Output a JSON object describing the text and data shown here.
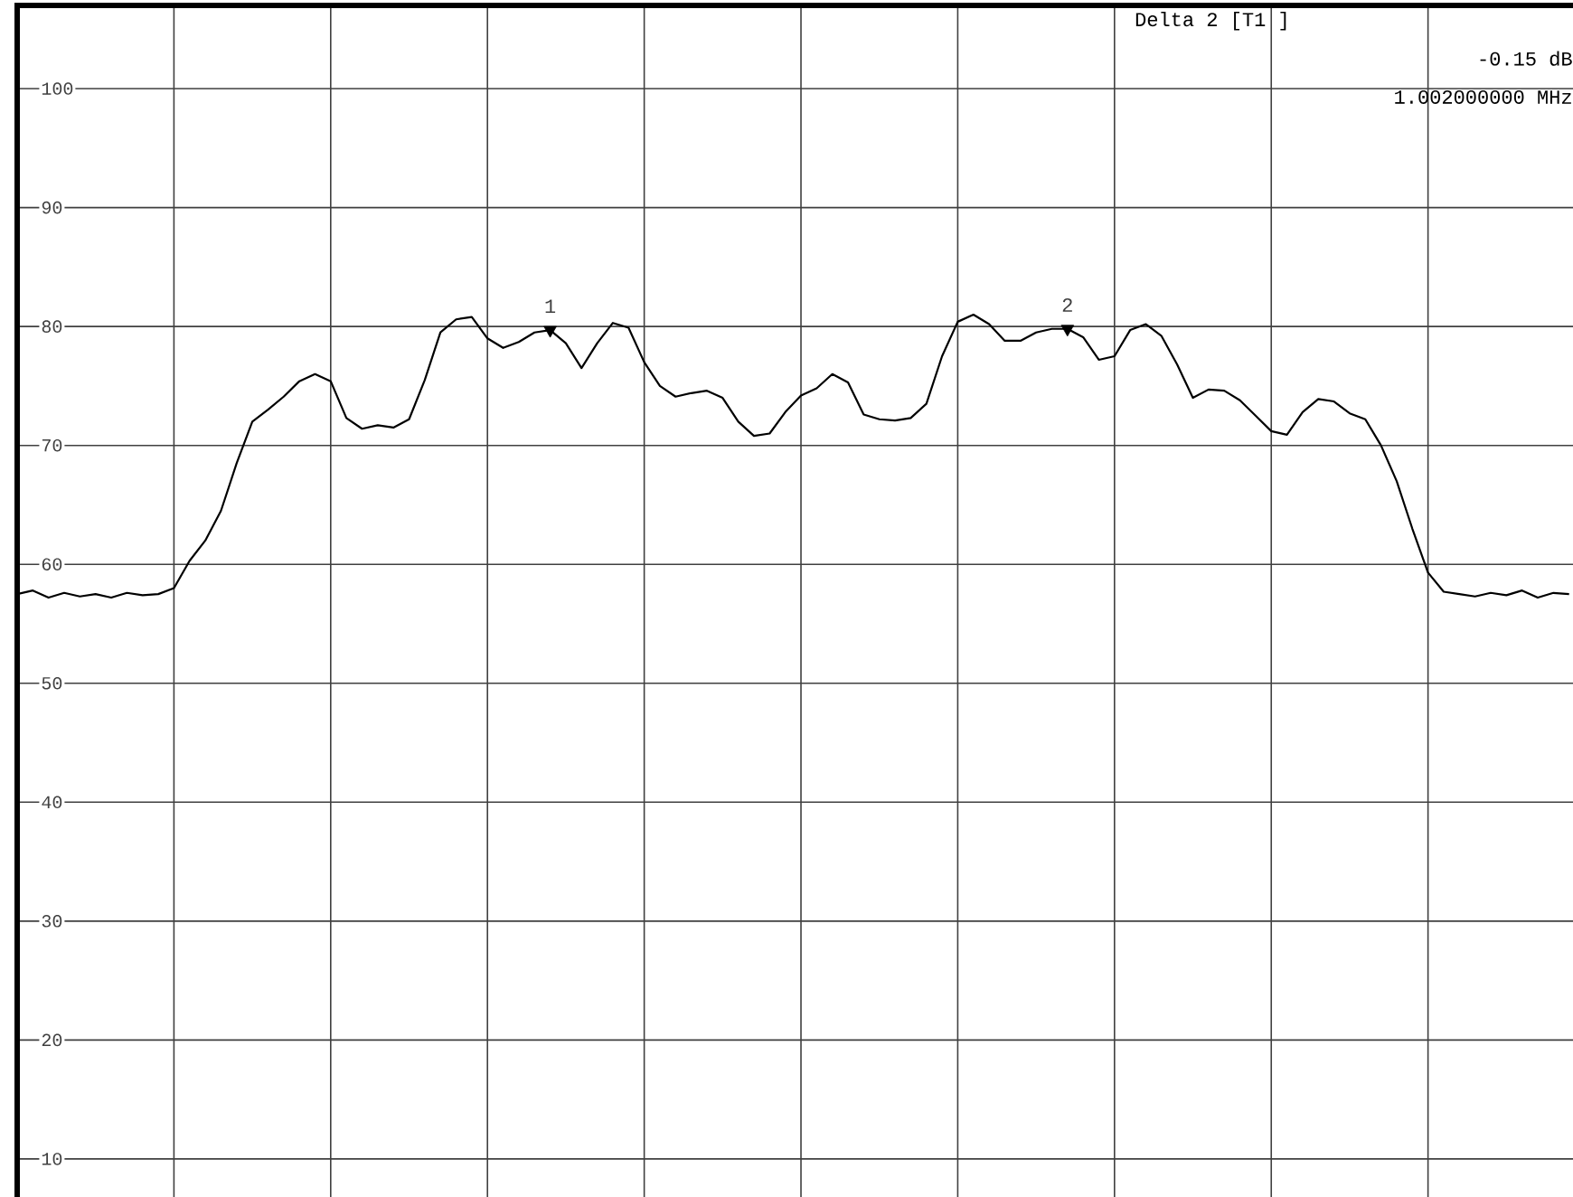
{
  "chart_data": {
    "type": "line",
    "categories": [
      null,
      null,
      null,
      null,
      null,
      null,
      null,
      null,
      null,
      null,
      null,
      null,
      null,
      null,
      null,
      null,
      null,
      null,
      null,
      null,
      null,
      null,
      null,
      null,
      null,
      null,
      null,
      null,
      null,
      null,
      null,
      null,
      null,
      null,
      null,
      null,
      null,
      null,
      null,
      null,
      null,
      null,
      null,
      null,
      null,
      null,
      null,
      null,
      null,
      null,
      null,
      null,
      null,
      null,
      null,
      null,
      null,
      null,
      null,
      null,
      null,
      null,
      null,
      null,
      null,
      null,
      null,
      null,
      null,
      null,
      null,
      null,
      null,
      null,
      null,
      null,
      null,
      null,
      null,
      null,
      null,
      null,
      null,
      null,
      null,
      null,
      null,
      null,
      null,
      null,
      null,
      null,
      null,
      null,
      null,
      null,
      null,
      null,
      null,
      null
    ],
    "series": [
      {
        "color": "#000000",
        "values": [
          57.5,
          57.8,
          57.2,
          57.6,
          57.3,
          57.5,
          57.2,
          57.6,
          57.4,
          57.5,
          58.0,
          60.3,
          62.0,
          64.5,
          68.5,
          72.0,
          73.0,
          74.1,
          75.4,
          76.0,
          75.4,
          72.3,
          71.4,
          71.7,
          71.5,
          72.2,
          75.5,
          79.5,
          80.6,
          80.8,
          79.0,
          78.2,
          78.7,
          79.5,
          79.7,
          78.6,
          76.5,
          78.6,
          80.3,
          79.9,
          77.0,
          75.0,
          74.1,
          74.4,
          74.6,
          74.0,
          72.0,
          70.8,
          71.0,
          72.8,
          74.2,
          74.8,
          76.0,
          75.3,
          72.6,
          72.2,
          72.1,
          72.3,
          73.5,
          77.5,
          80.4,
          81.0,
          80.2,
          78.8,
          78.8,
          79.5,
          79.8,
          79.8,
          79.1,
          77.2,
          77.5,
          79.7,
          80.2,
          79.2,
          76.8,
          74.0,
          74.7,
          74.6,
          73.8,
          72.5,
          71.2,
          70.9,
          72.8,
          73.9,
          73.7,
          72.7,
          72.2,
          70.0,
          67.0,
          63.0,
          59.3,
          57.7,
          57.5,
          57.3,
          57.6,
          57.4,
          57.8,
          57.2,
          57.6,
          57.5
        ]
      },
      {
        "name": "1",
        "type": "scatter",
        "marker": "triangle",
        "color": "#000000",
        "values": [
          null,
          null,
          null,
          null,
          null,
          null,
          null,
          null,
          null,
          null,
          null,
          null,
          null,
          null,
          null,
          null,
          null,
          null,
          null,
          null,
          null,
          null,
          null,
          null,
          null,
          null,
          null,
          null,
          null,
          null,
          null,
          null,
          null,
          null,
          79.7,
          null,
          null,
          null,
          null,
          null,
          null,
          null,
          null,
          null,
          null,
          null,
          null,
          null,
          null,
          null,
          null,
          null,
          null,
          null,
          null,
          null,
          null,
          null,
          null,
          null,
          null,
          null,
          null,
          null,
          null,
          null,
          null,
          null,
          null,
          null,
          null,
          null,
          null,
          null,
          null,
          null,
          null,
          null,
          null,
          null,
          null,
          null,
          null,
          null,
          null,
          null,
          null,
          null,
          null,
          null,
          null,
          null,
          null,
          null,
          null,
          null,
          null,
          null,
          null,
          null
        ]
      },
      {
        "name": "2",
        "type": "scatter",
        "marker": "triangle",
        "color": "#000000",
        "values": [
          null,
          null,
          null,
          null,
          null,
          null,
          null,
          null,
          null,
          null,
          null,
          null,
          null,
          null,
          null,
          null,
          null,
          null,
          null,
          null,
          null,
          null,
          null,
          null,
          null,
          null,
          null,
          null,
          null,
          null,
          null,
          null,
          null,
          null,
          null,
          null,
          null,
          null,
          null,
          null,
          null,
          null,
          null,
          null,
          null,
          null,
          null,
          null,
          null,
          null,
          null,
          null,
          null,
          null,
          null,
          null,
          null,
          null,
          null,
          null,
          null,
          null,
          null,
          null,
          null,
          null,
          null,
          79.8,
          null,
          null,
          null,
          null,
          null,
          null,
          null,
          null,
          null,
          null,
          null,
          null,
          null,
          null,
          null,
          null,
          null,
          null,
          null,
          null,
          null,
          null,
          null,
          null,
          null,
          null,
          null,
          null,
          null,
          null,
          null,
          null
        ]
      }
    ],
    "ylim": [
      6.8,
      107.0
    ],
    "yticks": [
      10,
      20,
      30,
      40,
      50,
      60,
      70,
      80,
      90,
      100
    ],
    "grid": true,
    "tick_labels": "y",
    "annotations": [
      "Delta 2 [T1 ]",
      "-0.15 dB",
      "1.002000000 MHz"
    ]
  }
}
